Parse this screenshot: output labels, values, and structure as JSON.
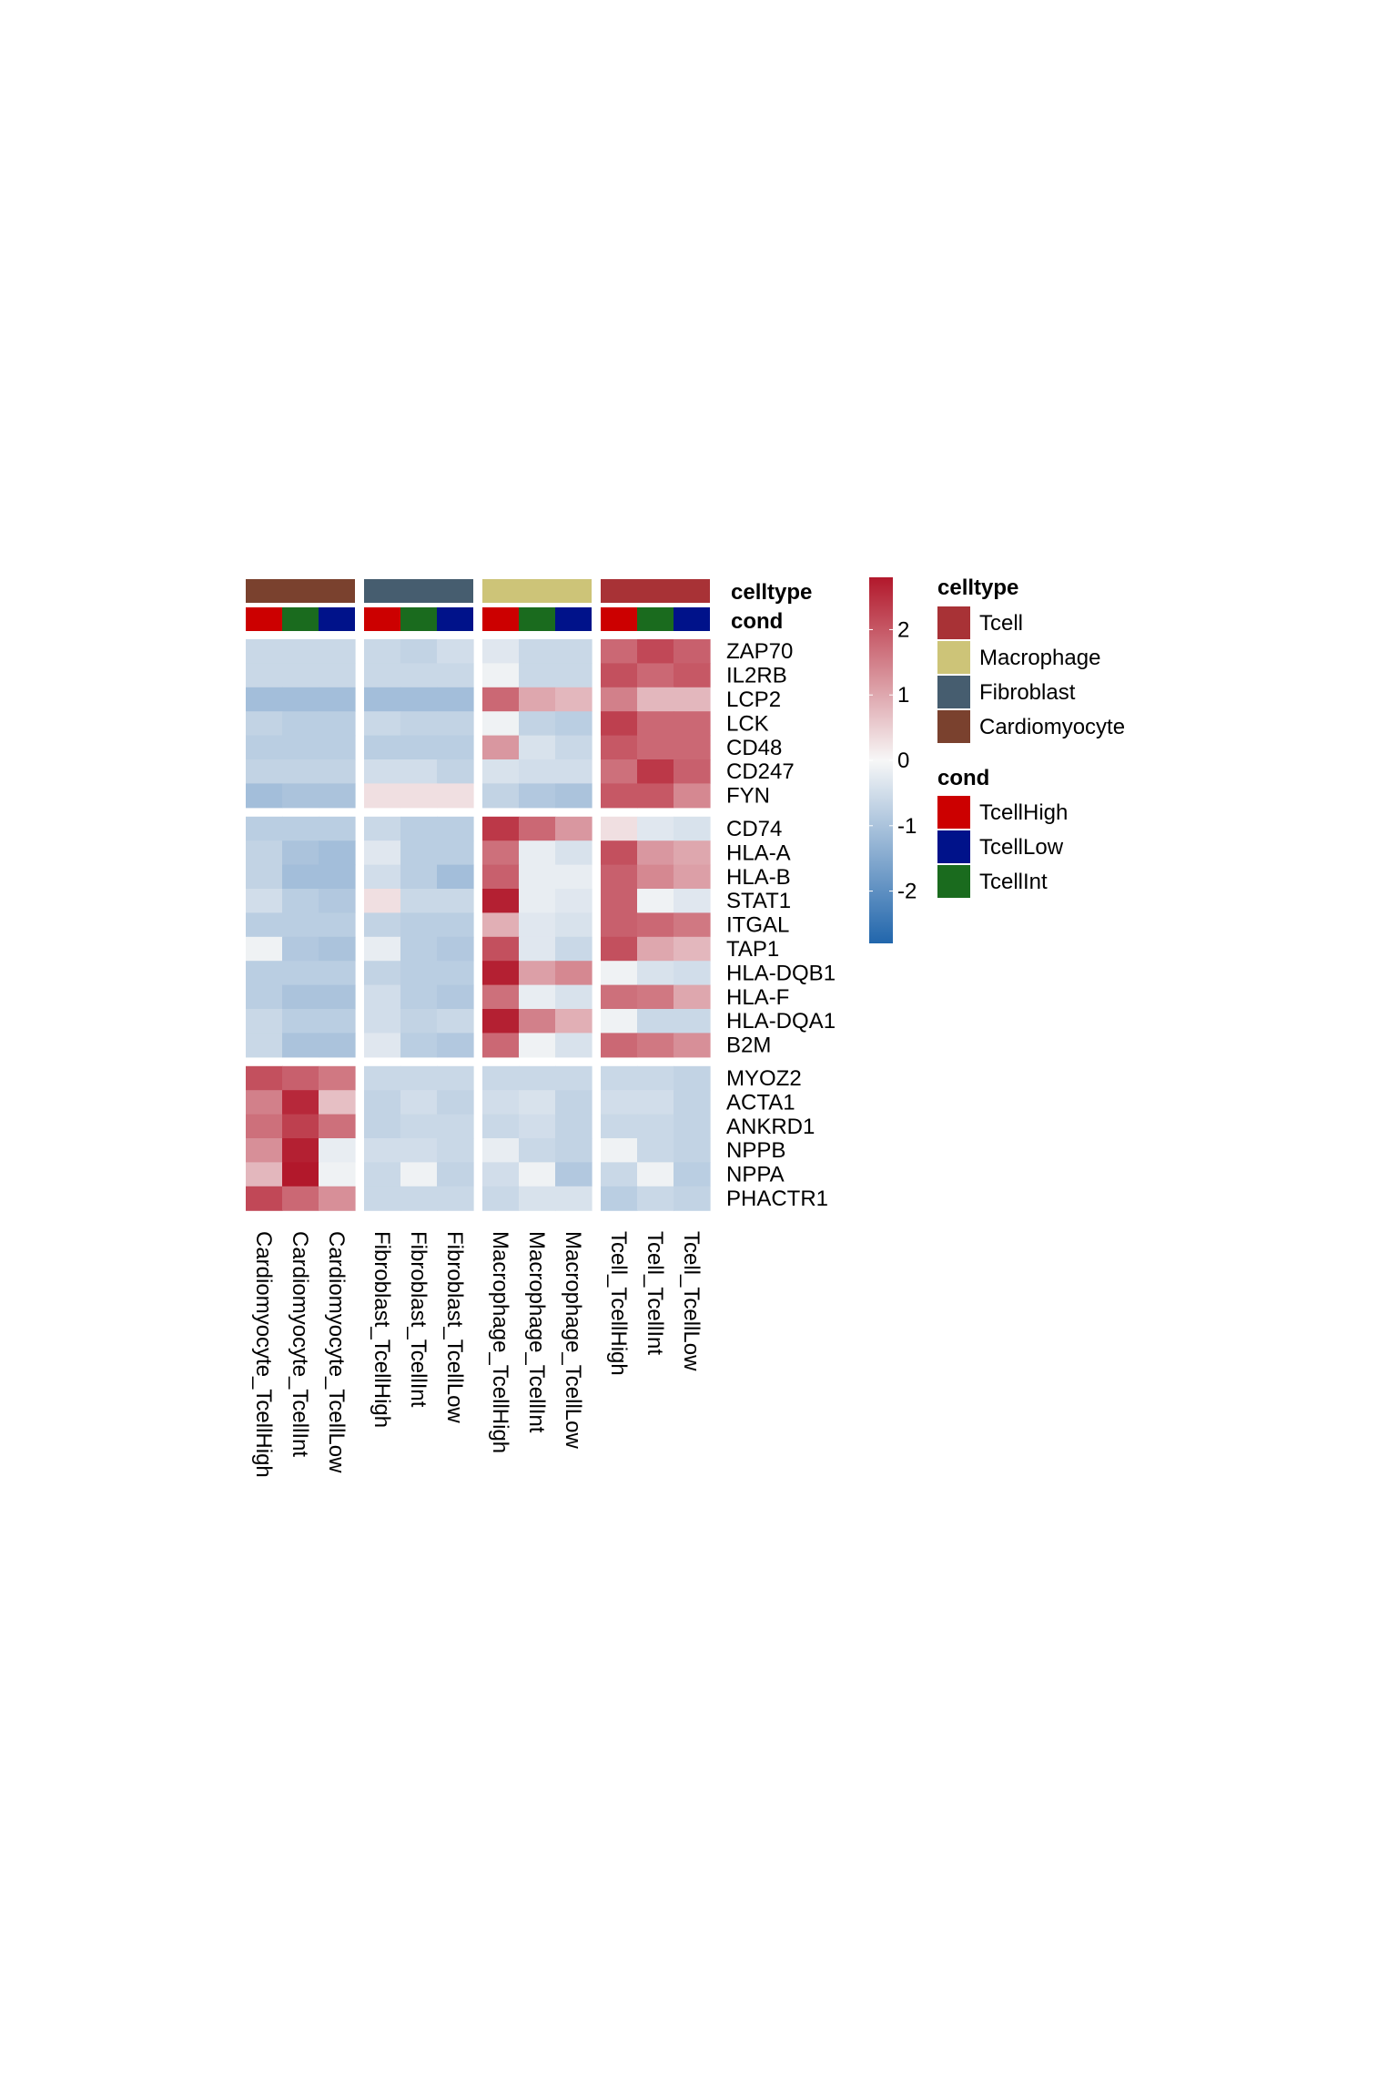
{
  "chart_data": {
    "type": "heatmap",
    "columns": [
      "Cardiomyocyte_TcellHigh",
      "Cardiomyocyte_TcellInt",
      "Cardiomyocyte_TcellLow",
      "Fibroblast_TcellHigh",
      "Fibroblast_TcellInt",
      "Fibroblast_TcellLow",
      "Macrophage_TcellHigh",
      "Macrophage_TcellInt",
      "Macrophage_TcellLow",
      "Tcell_TcellHigh",
      "Tcell_TcellInt",
      "Tcell_TcellLow"
    ],
    "column_celltype": [
      "Cardiomyocyte",
      "Cardiomyocyte",
      "Cardiomyocyte",
      "Fibroblast",
      "Fibroblast",
      "Fibroblast",
      "Macrophage",
      "Macrophage",
      "Macrophage",
      "Tcell",
      "Tcell",
      "Tcell"
    ],
    "column_cond": [
      "TcellHigh",
      "TcellInt",
      "TcellLow",
      "TcellHigh",
      "TcellInt",
      "TcellLow",
      "TcellHigh",
      "TcellInt",
      "TcellLow",
      "TcellHigh",
      "TcellInt",
      "TcellLow"
    ],
    "column_groups": [
      3,
      3,
      3,
      3
    ],
    "rows": [
      "ZAP70",
      "IL2RB",
      "LCP2",
      "LCK",
      "CD48",
      "CD247",
      "FYN",
      "CD74",
      "HLA-A",
      "HLA-B",
      "STAT1",
      "ITGAL",
      "TAP1",
      "HLA-DQB1",
      "HLA-F",
      "HLA-DQA1",
      "B2M",
      "MYOZ2",
      "ACTA1",
      "ANKRD1",
      "NPPB",
      "NPPA",
      "PHACTR1"
    ],
    "row_groups": [
      7,
      10,
      6
    ],
    "values": [
      [
        -0.6,
        -0.6,
        -0.6,
        -0.6,
        -0.7,
        -0.5,
        -0.3,
        -0.6,
        -0.6,
        1.8,
        2.2,
        1.9
      ],
      [
        -0.6,
        -0.6,
        -0.6,
        -0.6,
        -0.6,
        -0.6,
        -0.1,
        -0.6,
        -0.6,
        2.1,
        1.8,
        2.0
      ],
      [
        -1.1,
        -1.1,
        -1.1,
        -1.1,
        -1.1,
        -1.1,
        1.8,
        1.0,
        0.8,
        1.5,
        0.8,
        0.8
      ],
      [
        -0.7,
        -0.8,
        -0.8,
        -0.6,
        -0.7,
        -0.7,
        -0.1,
        -0.7,
        -0.8,
        2.3,
        1.8,
        1.8
      ],
      [
        -0.8,
        -0.8,
        -0.8,
        -0.8,
        -0.8,
        -0.8,
        1.2,
        -0.4,
        -0.6,
        2.0,
        1.8,
        1.8
      ],
      [
        -0.7,
        -0.7,
        -0.7,
        -0.5,
        -0.5,
        -0.7,
        -0.4,
        -0.5,
        -0.5,
        1.7,
        2.4,
        1.9
      ],
      [
        -1.1,
        -1.0,
        -1.0,
        0.3,
        0.3,
        0.3,
        -0.7,
        -0.9,
        -1.0,
        2.0,
        2.0,
        1.4
      ],
      [
        -0.8,
        -0.8,
        -0.8,
        -0.6,
        -0.8,
        -0.8,
        2.4,
        1.8,
        1.2,
        0.3,
        -0.3,
        -0.4
      ],
      [
        -0.7,
        -1.0,
        -1.1,
        -0.3,
        -0.8,
        -0.8,
        1.7,
        -0.2,
        -0.4,
        2.1,
        1.2,
        1.0
      ],
      [
        -0.7,
        -1.1,
        -1.1,
        -0.5,
        -0.8,
        -1.1,
        1.9,
        -0.2,
        -0.2,
        1.9,
        1.4,
        1.1
      ],
      [
        -0.5,
        -0.8,
        -0.9,
        0.3,
        -0.6,
        -0.6,
        2.7,
        -0.2,
        -0.3,
        1.9,
        -0.1,
        -0.3
      ],
      [
        -0.8,
        -0.8,
        -0.8,
        -0.7,
        -0.8,
        -0.8,
        0.9,
        -0.3,
        -0.4,
        1.9,
        1.8,
        1.6
      ],
      [
        -0.1,
        -0.9,
        -1.0,
        -0.2,
        -0.8,
        -0.9,
        2.1,
        -0.3,
        -0.6,
        2.1,
        1.0,
        0.8
      ],
      [
        -0.8,
        -0.8,
        -0.8,
        -0.7,
        -0.8,
        -0.8,
        2.7,
        1.1,
        1.4,
        -0.1,
        -0.4,
        -0.5
      ],
      [
        -0.8,
        -1.0,
        -1.0,
        -0.5,
        -0.8,
        -0.9,
        1.7,
        -0.2,
        -0.4,
        1.7,
        1.6,
        1.0
      ],
      [
        -0.6,
        -0.8,
        -0.8,
        -0.5,
        -0.7,
        -0.6,
        2.7,
        1.5,
        0.9,
        -0.1,
        -0.6,
        -0.6
      ],
      [
        -0.6,
        -1.0,
        -1.0,
        -0.3,
        -0.8,
        -0.9,
        1.8,
        -0.1,
        -0.4,
        1.8,
        1.6,
        1.3
      ],
      [
        2.1,
        1.9,
        1.6,
        -0.6,
        -0.6,
        -0.6,
        -0.6,
        -0.6,
        -0.6,
        -0.6,
        -0.6,
        -0.7
      ],
      [
        1.5,
        2.6,
        0.7,
        -0.7,
        -0.5,
        -0.7,
        -0.5,
        -0.4,
        -0.7,
        -0.5,
        -0.5,
        -0.7
      ],
      [
        1.7,
        2.3,
        1.7,
        -0.7,
        -0.6,
        -0.6,
        -0.6,
        -0.5,
        -0.7,
        -0.6,
        -0.6,
        -0.7
      ],
      [
        1.3,
        2.7,
        -0.2,
        -0.5,
        -0.5,
        -0.6,
        -0.2,
        -0.6,
        -0.7,
        -0.1,
        -0.6,
        -0.7
      ],
      [
        0.8,
        2.9,
        -0.1,
        -0.6,
        -0.1,
        -0.7,
        -0.5,
        -0.1,
        -0.9,
        -0.6,
        -0.1,
        -0.8
      ],
      [
        2.2,
        1.8,
        1.3,
        -0.6,
        -0.6,
        -0.6,
        -0.6,
        -0.4,
        -0.4,
        -0.8,
        -0.6,
        -0.7
      ]
    ],
    "color_scale": {
      "min": -2.8,
      "max": 2.8,
      "low": "#2166ac",
      "mid": "#f7f7f7",
      "high": "#b2182b"
    },
    "colorbar_ticks": [
      "2",
      "1",
      "0",
      "-1",
      "-2"
    ],
    "colorbar_tick_values": [
      2,
      1,
      0,
      -1,
      -2
    ],
    "annotation_labels": {
      "celltype": "celltype",
      "cond": "cond"
    }
  },
  "legend": {
    "celltype": {
      "title": "celltype",
      "items": [
        {
          "label": "Tcell",
          "color": "#a83236"
        },
        {
          "label": "Macrophage",
          "color": "#cdc478"
        },
        {
          "label": "Fibroblast",
          "color": "#465d6f"
        },
        {
          "label": "Cardiomyocyte",
          "color": "#7a412e"
        }
      ]
    },
    "cond": {
      "title": "cond",
      "items": [
        {
          "label": "TcellHigh",
          "color": "#cc0000"
        },
        {
          "label": "TcellLow",
          "color": "#00128a"
        },
        {
          "label": "TcellInt",
          "color": "#1a6b1e"
        }
      ]
    }
  }
}
